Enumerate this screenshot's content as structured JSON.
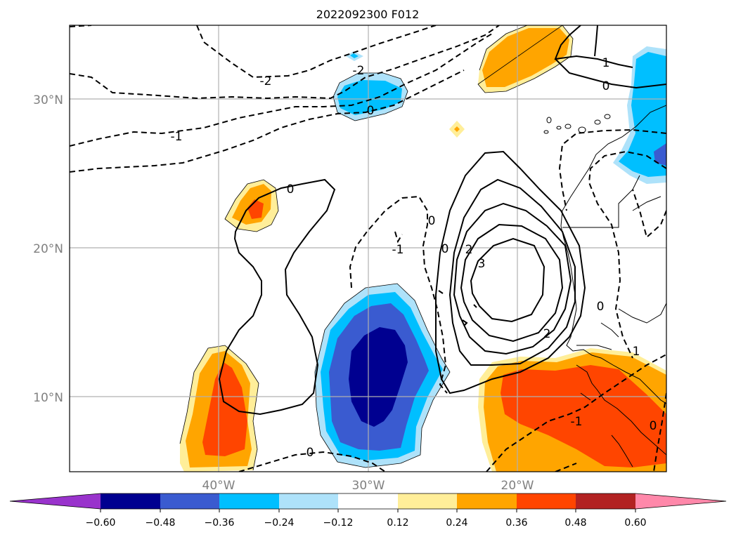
{
  "title": "2022092300 F012",
  "map": {
    "lat_labels": [
      "30°N",
      "20°N",
      "10°N"
    ],
    "lon_labels": [
      "40°W",
      "30°W",
      "20°W"
    ],
    "contour_labels": [
      "-2",
      "-2",
      "-1",
      "0",
      "0",
      "0",
      "-1",
      "0",
      "0",
      "2",
      "3",
      "2",
      "1",
      "0",
      "-1",
      "0",
      "1",
      "0"
    ]
  },
  "colorbar": {
    "colors": [
      "#9933cc",
      "#000090",
      "#3a5bd0",
      "#00bfff",
      "#aee2fa",
      "#ffffff",
      "#ffee99",
      "#ffa500",
      "#ff4500",
      "#b22222",
      "#ff88aa"
    ],
    "ticks": [
      "−0.60",
      "−0.48",
      "−0.36",
      "−0.24",
      "−0.12",
      "0.12",
      "0.24",
      "0.36",
      "0.48",
      "0.60"
    ]
  }
}
